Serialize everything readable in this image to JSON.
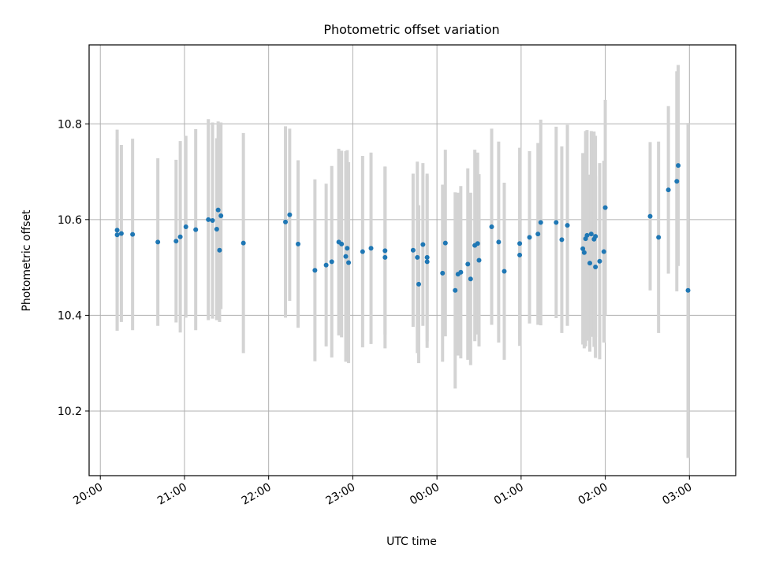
{
  "chart_data": {
    "type": "scatter",
    "title": "Photometric offset variation",
    "xlabel": "UTC time",
    "ylabel": "Photometric offset",
    "xlim": [
      "19:52",
      "03:33"
    ],
    "ylim": [
      10.065,
      10.965
    ],
    "grid": true,
    "x_ticks": [
      "20:00",
      "21:00",
      "22:00",
      "23:00",
      "00:00",
      "01:00",
      "02:00",
      "03:00"
    ],
    "y_ticks": [
      "10.2",
      "10.4",
      "10.6",
      "10.8"
    ],
    "colors": {
      "points": "#1f77b4",
      "errorbars": "#d3d3d3",
      "grid": "#b0b0b0"
    },
    "points": [
      {
        "t": "20:12",
        "y": 10.568,
        "e": 0.2
      },
      {
        "t": "20:12",
        "y": 10.578,
        "e": 0.21
      },
      {
        "t": "20:15",
        "y": 10.571,
        "e": 0.185
      },
      {
        "t": "20:23",
        "y": 10.569,
        "e": 0.2
      },
      {
        "t": "20:41",
        "y": 10.553,
        "e": 0.175
      },
      {
        "t": "20:54",
        "y": 10.555,
        "e": 0.17
      },
      {
        "t": "20:57",
        "y": 10.564,
        "e": 0.2
      },
      {
        "t": "21:01",
        "y": 10.585,
        "e": 0.19
      },
      {
        "t": "21:08",
        "y": 10.579,
        "e": 0.21
      },
      {
        "t": "21:17",
        "y": 10.6,
        "e": 0.21
      },
      {
        "t": "21:20",
        "y": 10.598,
        "e": 0.205
      },
      {
        "t": "21:23",
        "y": 10.58,
        "e": 0.19
      },
      {
        "t": "21:24",
        "y": 10.62,
        "e": 0.185
      },
      {
        "t": "21:25",
        "y": 10.536,
        "e": 0.15
      },
      {
        "t": "21:26",
        "y": 10.608,
        "e": 0.195
      },
      {
        "t": "21:42",
        "y": 10.551,
        "e": 0.23
      },
      {
        "t": "22:12",
        "y": 10.595,
        "e": 0.2
      },
      {
        "t": "22:15",
        "y": 10.61,
        "e": 0.18
      },
      {
        "t": "22:21",
        "y": 10.549,
        "e": 0.175
      },
      {
        "t": "22:33",
        "y": 10.494,
        "e": 0.19
      },
      {
        "t": "22:41",
        "y": 10.505,
        "e": 0.17
      },
      {
        "t": "22:45",
        "y": 10.512,
        "e": 0.2
      },
      {
        "t": "22:50",
        "y": 10.553,
        "e": 0.195
      },
      {
        "t": "22:52",
        "y": 10.549,
        "e": 0.195
      },
      {
        "t": "22:55",
        "y": 10.523,
        "e": 0.22
      },
      {
        "t": "22:56",
        "y": 10.54,
        "e": 0.205
      },
      {
        "t": "22:57",
        "y": 10.51,
        "e": 0.21
      },
      {
        "t": "23:07",
        "y": 10.533,
        "e": 0.2
      },
      {
        "t": "23:13",
        "y": 10.54,
        "e": 0.2
      },
      {
        "t": "23:23",
        "y": 10.535,
        "e": 0.175
      },
      {
        "t": "23:23",
        "y": 10.521,
        "e": 0.19
      },
      {
        "t": "23:43",
        "y": 10.536,
        "e": 0.16
      },
      {
        "t": "23:46",
        "y": 10.521,
        "e": 0.2
      },
      {
        "t": "23:47",
        "y": 10.465,
        "e": 0.165
      },
      {
        "t": "23:50",
        "y": 10.548,
        "e": 0.17
      },
      {
        "t": "23:53",
        "y": 10.521,
        "e": 0.175
      },
      {
        "t": "23:53",
        "y": 10.512,
        "e": 0.18
      },
      {
        "t": "00:04",
        "y": 10.488,
        "e": 0.185
      },
      {
        "t": "00:06",
        "y": 10.551,
        "e": 0.195
      },
      {
        "t": "00:13",
        "y": 10.452,
        "e": 0.205
      },
      {
        "t": "00:15",
        "y": 10.486,
        "e": 0.17
      },
      {
        "t": "00:17",
        "y": 10.49,
        "e": 0.18
      },
      {
        "t": "00:22",
        "y": 10.507,
        "e": 0.2
      },
      {
        "t": "00:24",
        "y": 10.476,
        "e": 0.18
      },
      {
        "t": "00:27",
        "y": 10.546,
        "e": 0.2
      },
      {
        "t": "00:29",
        "y": 10.55,
        "e": 0.19
      },
      {
        "t": "00:30",
        "y": 10.515,
        "e": 0.18
      },
      {
        "t": "00:39",
        "y": 10.585,
        "e": 0.205
      },
      {
        "t": "00:44",
        "y": 10.553,
        "e": 0.21
      },
      {
        "t": "00:48",
        "y": 10.492,
        "e": 0.185
      },
      {
        "t": "00:59",
        "y": 10.55,
        "e": 0.2
      },
      {
        "t": "00:59",
        "y": 10.526,
        "e": 0.19
      },
      {
        "t": "01:06",
        "y": 10.563,
        "e": 0.18
      },
      {
        "t": "01:12",
        "y": 10.57,
        "e": 0.19
      },
      {
        "t": "01:14",
        "y": 10.594,
        "e": 0.215
      },
      {
        "t": "01:25",
        "y": 10.594,
        "e": 0.2
      },
      {
        "t": "01:29",
        "y": 10.558,
        "e": 0.195
      },
      {
        "t": "01:33",
        "y": 10.588,
        "e": 0.21
      },
      {
        "t": "01:44",
        "y": 10.539,
        "e": 0.2
      },
      {
        "t": "01:45",
        "y": 10.531,
        "e": 0.2
      },
      {
        "t": "01:46",
        "y": 10.56,
        "e": 0.225
      },
      {
        "t": "01:47",
        "y": 10.567,
        "e": 0.22
      },
      {
        "t": "01:49",
        "y": 10.509,
        "e": 0.185
      },
      {
        "t": "01:50",
        "y": 10.57,
        "e": 0.215
      },
      {
        "t": "01:52",
        "y": 10.559,
        "e": 0.225
      },
      {
        "t": "01:53",
        "y": 10.565,
        "e": 0.21
      },
      {
        "t": "01:53",
        "y": 10.501,
        "e": 0.19
      },
      {
        "t": "01:56",
        "y": 10.513,
        "e": 0.205
      },
      {
        "t": "01:59",
        "y": 10.533,
        "e": 0.19
      },
      {
        "t": "02:00",
        "y": 10.625,
        "e": 0.225
      },
      {
        "t": "02:32",
        "y": 10.607,
        "e": 0.155
      },
      {
        "t": "02:38",
        "y": 10.563,
        "e": 0.2
      },
      {
        "t": "02:45",
        "y": 10.662,
        "e": 0.175
      },
      {
        "t": "02:51",
        "y": 10.68,
        "e": 0.23
      },
      {
        "t": "02:52",
        "y": 10.713,
        "e": 0.21
      },
      {
        "t": "02:59",
        "y": 10.452,
        "e": 0.35
      }
    ]
  }
}
